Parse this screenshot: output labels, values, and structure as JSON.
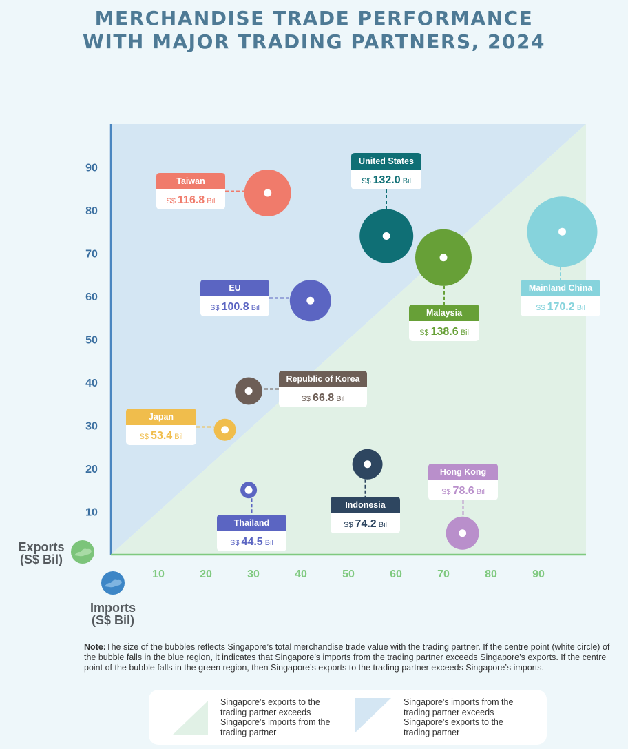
{
  "title_line1": "MERCHANDISE TRADE PERFORMANCE",
  "title_line2": "WITH MAJOR TRADING PARTNERS, 2024",
  "chart_data": {
    "type": "scatter",
    "subtype": "bubble",
    "xlabel": "Imports (S$ Bil)",
    "ylabel": "Exports (S$ Bil)",
    "xlabel_lines": [
      "Imports",
      "(S$ Bil)"
    ],
    "ylabel_lines": [
      "Exports",
      "(S$ Bil)"
    ],
    "xlim": [
      0,
      100
    ],
    "ylim": [
      0,
      100
    ],
    "x_ticks": [
      10,
      20,
      30,
      40,
      50,
      60,
      70,
      80,
      90
    ],
    "y_ticks": [
      10,
      20,
      30,
      40,
      50,
      60,
      70,
      80,
      90
    ],
    "grid": false,
    "points": [
      {
        "name": "Taiwan",
        "x": 33,
        "y": 84,
        "total_label": "116.8",
        "currency": "S$",
        "unit": "Bil",
        "color": "#f07b6b"
      },
      {
        "name": "United States",
        "x": 58,
        "y": 74,
        "total_label": "132.0",
        "currency": "S$",
        "unit": "Bil",
        "color": "#0f6f75"
      },
      {
        "name": "Malaysia",
        "x": 70,
        "y": 69,
        "total_label": "138.6",
        "currency": "S$",
        "unit": "Bil",
        "color": "#67a037"
      },
      {
        "name": "Mainland China",
        "x": 95,
        "y": 75,
        "total_label": "170.2",
        "currency": "S$",
        "unit": "Bil",
        "color": "#86d3dc"
      },
      {
        "name": "EU",
        "x": 42,
        "y": 59,
        "total_label": "100.8",
        "currency": "S$",
        "unit": "Bil",
        "color": "#5b65c2"
      },
      {
        "name": "Republic of Korea",
        "x": 29,
        "y": 38,
        "total_label": "66.8",
        "currency": "S$",
        "unit": "Bil",
        "color": "#6d5e56"
      },
      {
        "name": "Japan",
        "x": 24,
        "y": 29,
        "total_label": "53.4",
        "currency": "S$",
        "unit": "Bil",
        "color": "#f0bd4c"
      },
      {
        "name": "Thailand",
        "x": 29,
        "y": 15,
        "total_label": "44.5",
        "currency": "S$",
        "unit": "Bil",
        "color": "#5b65c2"
      },
      {
        "name": "Indonesia",
        "x": 54,
        "y": 21,
        "total_label": "74.2",
        "currency": "S$",
        "unit": "Bil",
        "color": "#2e4660"
      },
      {
        "name": "Hong Kong",
        "x": 74,
        "y": 5,
        "total_label": "78.6",
        "currency": "S$",
        "unit": "Bil",
        "color": "#b98fcb"
      }
    ]
  },
  "colors": {
    "blue_region": "#d4e6f3",
    "green_region": "#e1f1e6",
    "y_axis": "#4a86c0",
    "x_axis": "#7fc97f",
    "y_tick_text": "#3a6fa0",
    "x_tick_text": "#7fc97f"
  },
  "icons": {
    "exports": "singapore-map-icon-green",
    "imports": "singapore-map-icon-blue"
  },
  "note": {
    "label": "Note:",
    "text": "The size of the bubbles reflects Singapore’s total merchandise trade value with the trading partner. If the centre point (white circle) of the bubble falls in the blue region, it indicates that Singapore’s imports from the trading partner exceeds Singapore’s exports. If the centre point of the bubble falls in the green region, then Singapore’s exports to the trading partner exceeds Singapore’s imports."
  },
  "legend": {
    "green_text": "Singapore's exports to the trading partner exceeds Singapore's imports from the trading partner",
    "blue_text": "Singapore's imports from the trading partner exceeds Singapore's exports to the trading partner"
  }
}
